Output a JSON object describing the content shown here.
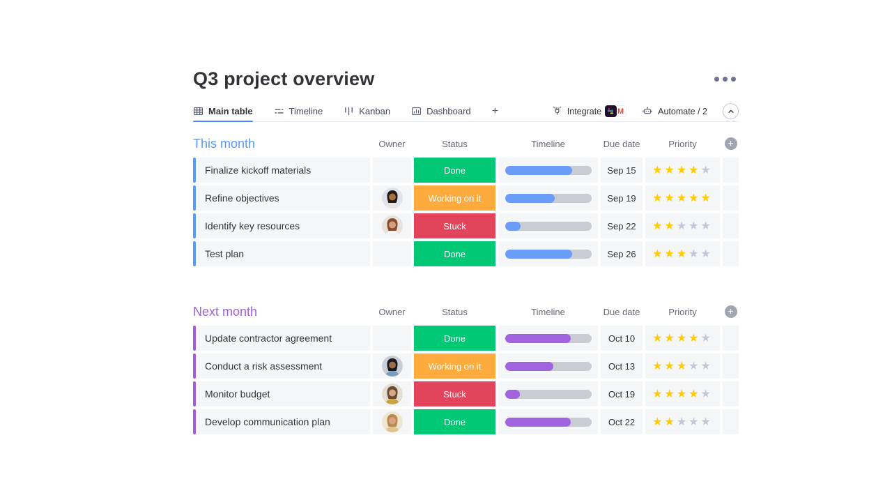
{
  "header": {
    "title": "Q3 project overview",
    "menu_icon": "ellipsis-icon"
  },
  "tabs": [
    {
      "label": "Main table",
      "icon": "table-icon",
      "active": true
    },
    {
      "label": "Timeline",
      "icon": "timeline-icon",
      "active": false
    },
    {
      "label": "Kanban",
      "icon": "kanban-icon",
      "active": false
    },
    {
      "label": "Dashboard",
      "icon": "dashboard-icon",
      "active": false
    },
    {
      "label": "+",
      "icon": "none",
      "active": false
    }
  ],
  "toolbar": {
    "integrate_label": "Integrate",
    "integrate_apps": [
      "slack-icon",
      "gmail-icon"
    ],
    "automate_label": "Automate / 2",
    "collapse_icon": "chevron-up-icon"
  },
  "columns": [
    "Owner",
    "Status",
    "Timeline",
    "Due date",
    "Priority"
  ],
  "status_colors": {
    "Done": "#00c875",
    "Working on it": "#fdab3d",
    "Stuck": "#e2445c"
  },
  "priority": {
    "max": 5,
    "active_color": "#ffcb00",
    "inactive_color": "#c5c7d6"
  },
  "groups": [
    {
      "name": "This month",
      "accent_color": "#579bfc",
      "timeline_fill_color": "#6b9cfa",
      "rows": [
        {
          "task": "Finalize kickoff materials",
          "owner": null,
          "status": "Done",
          "timeline_pct": 78,
          "due_date": "Sep 15",
          "priority": 4
        },
        {
          "task": "Refine objectives",
          "owner": {
            "label": "woman-dark-hair",
            "skin": "#a5713f",
            "hair": "#241b19",
            "shirt": "#e9e4df",
            "bg": "#dfe4ec"
          },
          "status": "Working on it",
          "timeline_pct": 58,
          "due_date": "Sep 19",
          "priority": 5
        },
        {
          "task": "Identify key resources",
          "owner": {
            "label": "woman-auburn-hair",
            "skin": "#d3a181",
            "hair": "#8a4b2c",
            "shirt": "#f3f3f3",
            "bg": "#e9e2da"
          },
          "status": "Stuck",
          "timeline_pct": 18,
          "due_date": "Sep 22",
          "priority": 2
        },
        {
          "task": "Test plan",
          "owner": null,
          "status": "Done",
          "timeline_pct": 78,
          "due_date": "Sep 26",
          "priority": 3
        }
      ]
    },
    {
      "name": "Next month",
      "accent_color": "#a25ddc",
      "timeline_fill_color": "#a164e1",
      "rows": [
        {
          "task": "Update contractor agreement",
          "owner": null,
          "status": "Done",
          "timeline_pct": 76,
          "due_date": "Oct 10",
          "priority": 4
        },
        {
          "task": "Conduct a risk assessment",
          "owner": {
            "label": "man-turban-beard",
            "skin": "#9c6b4a",
            "hair": "#17171c",
            "shirt": "#7d9bc0",
            "bg": "#c9ced6"
          },
          "status": "Working on it",
          "timeline_pct": 56,
          "due_date": "Oct 13",
          "priority": 3
        },
        {
          "task": "Monitor budget",
          "owner": {
            "label": "woman-glasses",
            "skin": "#d9a88a",
            "hair": "#6b4a33",
            "shirt": "#caa53f",
            "bg": "#e4ddd2"
          },
          "status": "Stuck",
          "timeline_pct": 17,
          "due_date": "Oct 19",
          "priority": 4
        },
        {
          "task": "Develop communication plan",
          "owner": {
            "label": "man-blond-beard",
            "skin": "#d9a482",
            "hair": "#b98a4e",
            "shirt": "#e0c28a",
            "bg": "#efe6cf"
          },
          "status": "Done",
          "timeline_pct": 76,
          "due_date": "Oct 22",
          "priority": 2
        }
      ]
    }
  ]
}
